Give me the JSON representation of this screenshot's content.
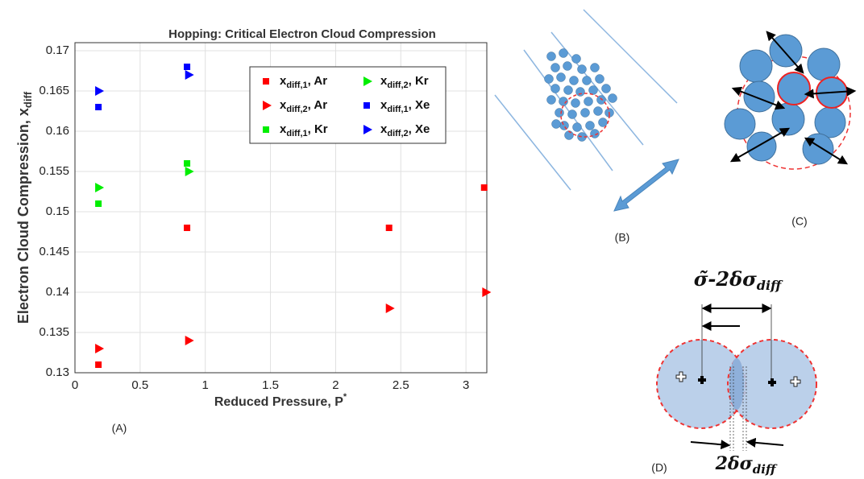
{
  "chart_data": {
    "type": "scatter",
    "title": "Hopping: Critical Electron Cloud Compression",
    "x_label": {
      "text": "Reduced Pressure, P",
      "sup": "*"
    },
    "y_label": {
      "text": "Electron Cloud Compression, x",
      "sub": "diff"
    },
    "xlim": [
      0,
      3.16
    ],
    "ylim": [
      0.13,
      0.171
    ],
    "xticks": [
      0,
      0.5,
      1,
      1.5,
      2,
      2.5,
      3
    ],
    "yticks": [
      0.13,
      0.135,
      0.14,
      0.145,
      0.15,
      0.155,
      0.16,
      0.165,
      0.17
    ],
    "grid": true,
    "legend_position": "upper right",
    "series": [
      {
        "legend_label": {
          "base": "x",
          "sub": "diff,1",
          "rest": ",  Ar"
        },
        "marker": "square",
        "color": "#ff0000",
        "x": [
          0.18,
          0.86,
          2.41,
          3.14
        ],
        "y": [
          0.131,
          0.148,
          0.148,
          0.153
        ]
      },
      {
        "legend_label": {
          "base": "x",
          "sub": "diff,2",
          "rest": ",  Ar"
        },
        "marker": "triangle",
        "color": "#ff0000",
        "x": [
          0.18,
          0.87,
          2.41,
          3.15
        ],
        "y": [
          0.133,
          0.134,
          0.138,
          0.14
        ]
      },
      {
        "legend_label": {
          "base": "x",
          "sub": "diff,1",
          "rest": ",  Kr"
        },
        "marker": "square",
        "color": "#00ee00",
        "x": [
          0.18,
          0.86
        ],
        "y": [
          0.151,
          0.156
        ]
      },
      {
        "legend_label": {
          "base": "x",
          "sub": "diff,2",
          "rest": ",  Kr"
        },
        "marker": "triangle",
        "color": "#00ee00",
        "x": [
          0.18,
          0.87
        ],
        "y": [
          0.153,
          0.155
        ]
      },
      {
        "legend_label": {
          "base": "x",
          "sub": "diff,1",
          "rest": ",  Xe"
        },
        "marker": "square",
        "color": "#0000ff",
        "x": [
          0.18,
          0.86
        ],
        "y": [
          0.163,
          0.168
        ]
      },
      {
        "legend_label": {
          "base": "x",
          "sub": "diff,2",
          "rest": ",  Xe"
        },
        "marker": "triangle",
        "color": "#0000ff",
        "x": [
          0.18,
          0.87
        ],
        "y": [
          0.165,
          0.167
        ]
      }
    ]
  },
  "panels": {
    "a": "(A)",
    "b": "(B)",
    "c": "(C)",
    "d": "(D)"
  },
  "equations": {
    "top": {
      "base": "σ̃-2δσ",
      "sub": "diff"
    },
    "bottom": {
      "base": "2δσ",
      "sub": "diff"
    }
  }
}
